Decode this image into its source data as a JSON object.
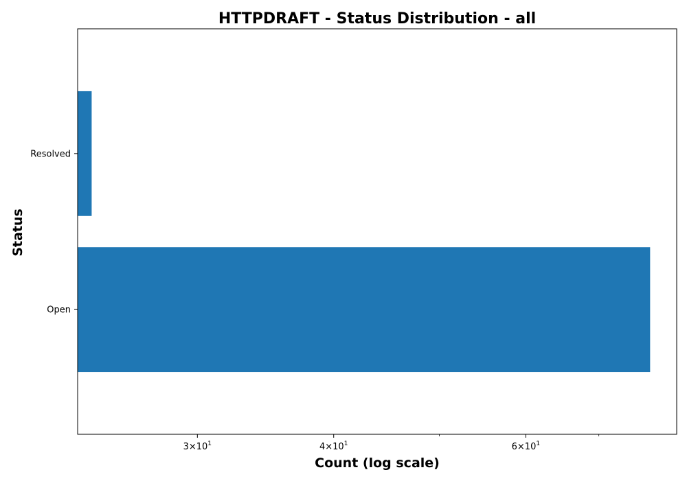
{
  "chart_data": {
    "type": "bar",
    "orientation": "horizontal",
    "title": "HTTPDRAFT - Status Distribution - all",
    "xlabel": "Count (log scale)",
    "ylabel": "Status",
    "x_scale": "log",
    "xlim": [
      23.3,
      82.5
    ],
    "categories": [
      "Open",
      "Resolved"
    ],
    "values": [
      78,
      24
    ],
    "bar_color": "#1f77b4",
    "x_major_ticks": [
      {
        "base": "3",
        "exp": "1",
        "value": 30
      },
      {
        "base": "4",
        "exp": "1",
        "value": 40
      },
      {
        "base": "6",
        "exp": "1",
        "value": 60
      }
    ],
    "x_minor_ticks": [
      50,
      70
    ],
    "grid": false,
    "legend": "none"
  }
}
